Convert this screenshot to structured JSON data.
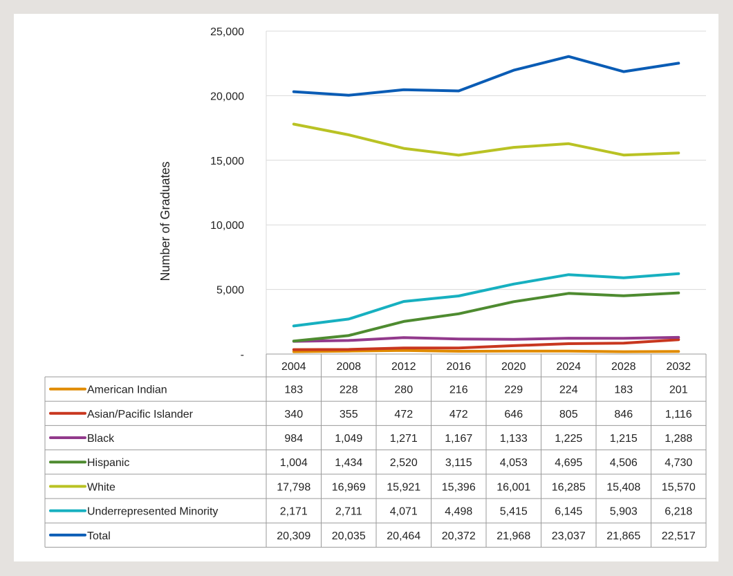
{
  "chart_data": {
    "type": "line",
    "title": "",
    "xlabel": "",
    "ylabel": "Number of Graduates",
    "ylim": [
      0,
      25000
    ],
    "y_ticks": [
      0,
      5000,
      10000,
      15000,
      20000,
      25000
    ],
    "y_tick_labels": [
      "-",
      "5,000",
      "10,000",
      "15,000",
      "20,000",
      "25,000"
    ],
    "grid": "horizontal",
    "legend": "data table below chart",
    "categories": [
      "2004",
      "2008",
      "2012",
      "2016",
      "2020",
      "2024",
      "2028",
      "2032"
    ],
    "series": [
      {
        "name": "American Indian",
        "color": "#e08b00",
        "values": [
          183,
          228,
          280,
          216,
          229,
          224,
          183,
          201
        ],
        "labels": [
          "183",
          "228",
          "280",
          "216",
          "229",
          "224",
          "183",
          "201"
        ]
      },
      {
        "name": "Asian/Pacific Islander",
        "color": "#c8371f",
        "values": [
          340,
          355,
          472,
          472,
          646,
          805,
          846,
          1116
        ],
        "labels": [
          "340",
          "355",
          "472",
          "472",
          "646",
          "805",
          "846",
          "1,116"
        ]
      },
      {
        "name": "Black",
        "color": "#923a8c",
        "values": [
          984,
          1049,
          1271,
          1167,
          1133,
          1225,
          1215,
          1288
        ],
        "labels": [
          "984",
          "1,049",
          "1,271",
          "1,167",
          "1,133",
          "1,225",
          "1,215",
          "1,288"
        ]
      },
      {
        "name": "Hispanic",
        "color": "#4e8b30",
        "values": [
          1004,
          1434,
          2520,
          3115,
          4053,
          4695,
          4506,
          4730
        ],
        "labels": [
          "1,004",
          "1,434",
          "2,520",
          "3,115",
          "4,053",
          "4,695",
          "4,506",
          "4,730"
        ]
      },
      {
        "name": "White",
        "color": "#b9c224",
        "values": [
          17798,
          16969,
          15921,
          15396,
          16001,
          16285,
          15408,
          15570
        ],
        "labels": [
          "17,798",
          "16,969",
          "15,921",
          "15,396",
          "16,001",
          "16,285",
          "15,408",
          "15,570"
        ]
      },
      {
        "name": "Underrepresented Minority",
        "color": "#17b0c0",
        "values": [
          2171,
          2711,
          4071,
          4498,
          5415,
          6145,
          5903,
          6218
        ],
        "labels": [
          "2,171",
          "2,711",
          "4,071",
          "4,498",
          "5,415",
          "6,145",
          "5,903",
          "6,218"
        ]
      },
      {
        "name": "Total",
        "color": "#0a5cb5",
        "values": [
          20309,
          20035,
          20464,
          20372,
          21968,
          23037,
          21865,
          22517
        ],
        "labels": [
          "20,309",
          "20,035",
          "20,464",
          "20,372",
          "21,968",
          "23,037",
          "21,865",
          "22,517"
        ]
      }
    ]
  }
}
